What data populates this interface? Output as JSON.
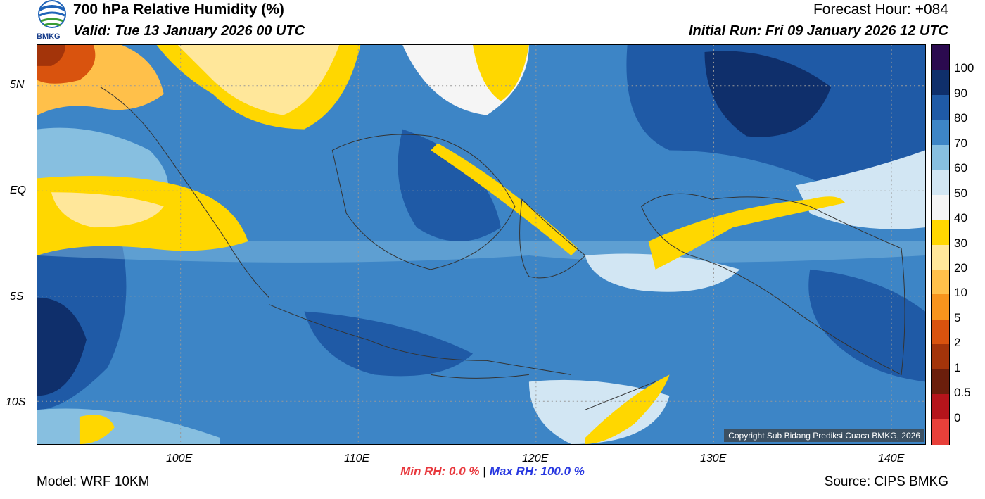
{
  "header": {
    "title": "700 hPa Relative Humidity (%)",
    "valid": "Valid: Tue 13 January 2026 00 UTC",
    "forecast_hour": "Forecast Hour: +084",
    "initial_run": "Initial Run: Fri 09 January 2026 12 UTC",
    "logo_text": "BMKG"
  },
  "map": {
    "lat_labels": [
      "5N",
      "EQ",
      "5S",
      "10S"
    ],
    "lon_labels": [
      "100E",
      "110E",
      "120E",
      "130E",
      "140E"
    ],
    "copyright": "Copyright Sub Bidang Prediksi Cuaca BMKG, 2026"
  },
  "stats": {
    "min_label": "Min RH:",
    "min_value": "0.0 %",
    "separator": "|",
    "max_label": "Max RH:",
    "max_value": "100.0 %"
  },
  "footer": {
    "model": "Model: WRF 10KM",
    "source": "Source: CIPS BMKG"
  },
  "colorbar": {
    "labels": [
      "100",
      "90",
      "80",
      "70",
      "60",
      "50",
      "40",
      "30",
      "20",
      "10",
      "5",
      "2",
      "1",
      "0.5",
      "0"
    ],
    "colors": [
      "#2b0a4f",
      "#0f2f6b",
      "#1f5aa6",
      "#3d85c6",
      "#87bfe0",
      "#d2e6f3",
      "#f5f5f5",
      "#ffd700",
      "#ffe79a",
      "#ffc04a",
      "#f7941d",
      "#d9530e",
      "#a3340a",
      "#6b1e0c",
      "#b5141b",
      "#e8403a"
    ]
  }
}
